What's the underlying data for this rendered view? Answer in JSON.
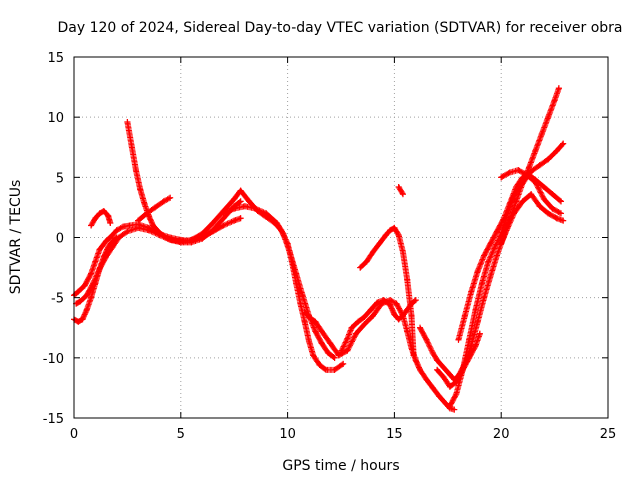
{
  "chart_data": {
    "type": "scatter",
    "title": "Day 120 of 2024, Sidereal Day-to-day VTEC variation (SDTVAR) for receiver obra",
    "xlabel": "GPS time / hours",
    "ylabel": "SDTVAR / TECUs",
    "xlim": [
      0,
      25
    ],
    "ylim": [
      -15,
      15
    ],
    "xticks": [
      "0",
      "5",
      "10",
      "15",
      "20",
      "25"
    ],
    "yticks": [
      "15",
      "10",
      "5",
      "0",
      "-5",
      "-10",
      "-15"
    ],
    "grid": true,
    "marker": "+",
    "color": "#ff0000",
    "series": [
      {
        "x": [
          0.0,
          0.2,
          0.5,
          0.8,
          1.0,
          1.2,
          1.5,
          1.8,
          2.0,
          2.3,
          2.6,
          3.0,
          3.5,
          4.0,
          4.5,
          5.0,
          5.5,
          6.0,
          6.5,
          7.0,
          7.5,
          7.8
        ],
        "y": [
          -4.8,
          -4.5,
          -4.0,
          -3.0,
          -2.0,
          -1.0,
          -0.3,
          0.2,
          0.6,
          0.9,
          1.0,
          1.1,
          0.8,
          0.3,
          0.0,
          -0.2,
          -0.3,
          0.0,
          0.5,
          1.0,
          1.4,
          1.6
        ]
      },
      {
        "x": [
          0.1,
          0.3,
          0.6,
          0.9,
          1.2,
          1.5,
          1.8,
          2.1,
          2.5,
          3.0,
          3.5,
          4.0,
          4.5,
          5.0,
          5.5,
          6.0,
          6.5,
          7.0,
          7.5,
          7.8
        ],
        "y": [
          -5.5,
          -5.3,
          -4.8,
          -3.8,
          -2.6,
          -1.6,
          -0.8,
          0.0,
          0.5,
          0.8,
          0.6,
          0.2,
          -0.2,
          -0.4,
          -0.4,
          -0.1,
          0.6,
          1.6,
          2.6,
          3.0
        ]
      },
      {
        "x": [
          0.0,
          0.2,
          0.4,
          0.6,
          0.8,
          1.0,
          1.2,
          1.4,
          1.6,
          1.8,
          2.0
        ],
        "y": [
          -6.8,
          -7.0,
          -6.8,
          -6.0,
          -5.0,
          -3.8,
          -2.6,
          -1.6,
          -0.8,
          -0.3,
          0.0
        ]
      },
      {
        "x": [
          0.8,
          1.0,
          1.2,
          1.4,
          1.6,
          1.7
        ],
        "y": [
          1.0,
          1.6,
          2.0,
          2.2,
          1.8,
          1.2
        ]
      },
      {
        "x": [
          2.5,
          2.7,
          2.9,
          3.1,
          3.3,
          3.5,
          3.7,
          4.0,
          4.3,
          4.6,
          4.9,
          5.2,
          5.5,
          5.8
        ],
        "y": [
          9.6,
          7.6,
          5.6,
          4.0,
          2.8,
          1.8,
          1.0,
          0.4,
          0.0,
          -0.2,
          -0.3,
          -0.3,
          -0.2,
          0.0
        ]
      },
      {
        "x": [
          3.0,
          3.4,
          3.8,
          4.2,
          4.5
        ],
        "y": [
          1.4,
          2.0,
          2.5,
          3.0,
          3.3
        ]
      },
      {
        "x": [
          5.5,
          6.0,
          6.5,
          7.0,
          7.5,
          7.8,
          8.2,
          8.6,
          9.0,
          9.4,
          9.7,
          10.0,
          10.2,
          10.4,
          10.6,
          10.8,
          11.0,
          11.2,
          11.5,
          11.8,
          12.2,
          12.6
        ],
        "y": [
          -0.2,
          0.3,
          1.2,
          2.2,
          3.2,
          3.9,
          3.0,
          2.2,
          1.7,
          1.2,
          0.6,
          -0.5,
          -2.0,
          -3.8,
          -5.5,
          -7.0,
          -8.6,
          -9.8,
          -10.6,
          -11.0,
          -11.0,
          -10.5
        ]
      },
      {
        "x": [
          7.0,
          7.5,
          8.0,
          8.5,
          9.0,
          9.5,
          9.8,
          10.1,
          10.4,
          10.7,
          11.0,
          11.3,
          11.6,
          11.9,
          12.2
        ],
        "y": [
          2.0,
          2.4,
          2.6,
          2.4,
          2.0,
          1.2,
          0.3,
          -1.2,
          -3.0,
          -4.8,
          -6.5,
          -7.8,
          -8.8,
          -9.6,
          -10.0
        ]
      },
      {
        "x": [
          10.8,
          11.0,
          11.3,
          11.6,
          12.0,
          12.4,
          12.8,
          13.2,
          13.6,
          14.0,
          14.4,
          14.8,
          15.1,
          15.4,
          15.6,
          15.8,
          16.0,
          16.2,
          16.5,
          16.8,
          17.1,
          17.4,
          17.6,
          17.8
        ],
        "y": [
          -6.2,
          -6.6,
          -7.0,
          -7.8,
          -8.8,
          -9.8,
          -9.4,
          -8.0,
          -7.2,
          -6.5,
          -5.5,
          -5.2,
          -5.5,
          -6.5,
          -7.8,
          -9.2,
          -10.2,
          -11.0,
          -11.8,
          -12.5,
          -13.2,
          -13.8,
          -14.2,
          -14.3
        ]
      },
      {
        "x": [
          12.5,
          12.8,
          13.0,
          13.3,
          13.6,
          13.9,
          14.2,
          14.5,
          14.8,
          15.0,
          15.2,
          15.4,
          15.6,
          15.8,
          16.0
        ],
        "y": [
          -9.5,
          -8.4,
          -7.5,
          -7.0,
          -6.6,
          -6.0,
          -5.4,
          -5.2,
          -5.6,
          -6.4,
          -6.8,
          -6.5,
          -6.0,
          -5.5,
          -5.2
        ]
      },
      {
        "x": [
          13.4,
          13.7,
          14.0,
          14.3,
          14.6,
          14.8,
          15.0,
          15.2,
          15.4,
          15.6,
          15.8,
          15.9
        ],
        "y": [
          -2.5,
          -2.0,
          -1.2,
          -0.5,
          0.2,
          0.6,
          0.8,
          0.2,
          -1.2,
          -3.5,
          -6.5,
          -9.8
        ]
      },
      {
        "x": [
          15.2,
          15.4
        ],
        "y": [
          4.2,
          3.6
        ]
      },
      {
        "x": [
          16.2,
          16.5,
          16.8,
          17.0,
          17.3,
          17.6,
          17.8,
          18.0,
          18.3,
          18.6,
          18.9,
          19.2,
          19.5,
          19.8,
          20.1,
          20.4,
          20.7,
          21.0,
          21.3,
          21.6,
          21.9,
          22.2,
          22.5,
          22.7
        ],
        "y": [
          -7.5,
          -8.5,
          -9.6,
          -10.2,
          -10.8,
          -11.4,
          -11.8,
          -11.5,
          -10.5,
          -9.0,
          -7.0,
          -5.0,
          -3.2,
          -1.5,
          0.0,
          1.5,
          3.0,
          4.5,
          5.8,
          7.2,
          8.6,
          10.0,
          11.4,
          12.4
        ]
      },
      {
        "x": [
          17.6,
          17.9,
          18.2,
          18.5,
          18.8,
          19.1,
          19.4,
          19.7,
          20.0,
          20.3,
          20.6,
          21.0,
          21.4,
          21.8,
          22.2,
          22.6,
          22.9
        ],
        "y": [
          -14.0,
          -13.0,
          -11.0,
          -8.5,
          -6.0,
          -3.8,
          -2.0,
          -0.8,
          0.3,
          2.0,
          3.5,
          4.5,
          5.5,
          6.0,
          6.5,
          7.2,
          7.8
        ]
      },
      {
        "x": [
          18.0,
          18.3,
          18.6,
          18.9,
          19.2,
          19.5,
          19.8,
          20.1,
          20.4,
          20.7,
          21.0,
          21.3,
          21.6,
          22.0,
          22.4,
          22.8
        ],
        "y": [
          -8.5,
          -6.5,
          -4.5,
          -2.8,
          -1.5,
          -0.5,
          0.5,
          1.5,
          2.8,
          4.2,
          5.0,
          5.2,
          4.8,
          4.2,
          3.6,
          3.0
        ]
      },
      {
        "x": [
          17.0,
          17.3,
          17.6,
          17.9,
          18.2,
          18.5,
          18.8,
          19.0
        ],
        "y": [
          -11.0,
          -11.6,
          -12.4,
          -12.0,
          -11.0,
          -10.0,
          -9.0,
          -8.0
        ]
      },
      {
        "x": [
          20.0,
          20.3,
          20.6,
          21.0,
          21.4,
          21.8,
          22.2,
          22.6,
          22.9
        ],
        "y": [
          -0.5,
          0.8,
          2.0,
          3.0,
          3.6,
          2.6,
          2.0,
          1.6,
          1.4
        ]
      },
      {
        "x": [
          20.0,
          20.4,
          20.8,
          21.2,
          21.6,
          22.0,
          22.4,
          22.8
        ],
        "y": [
          5.0,
          5.4,
          5.6,
          5.2,
          4.6,
          3.2,
          2.4,
          2.0
        ]
      }
    ]
  }
}
